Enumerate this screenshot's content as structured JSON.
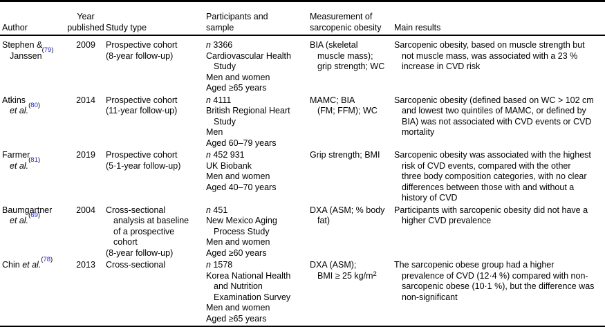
{
  "colors": {
    "ref_blue": "#2424cf",
    "rule_black": "#000000"
  },
  "table": {
    "header": {
      "author": [
        "Author"
      ],
      "year": [
        "Year",
        "published"
      ],
      "study": [
        "Study type"
      ],
      "participants": [
        "Participants and",
        "sample"
      ],
      "measurement": [
        "Measurement of",
        "sarcopenic obesity"
      ],
      "results": [
        "Main results"
      ]
    },
    "rows": [
      {
        "author": [
          "Stephen &",
          "»Janssen{ref}79{/ref}"
        ],
        "year": [
          "2009"
        ],
        "study": [
          "Prospective cohort",
          "(8-year follow-up)"
        ],
        "participants": [
          "{i}n{/i} 3366",
          "Cardiovascular Health",
          "»Study",
          "Men and women",
          "Aged ≥65 years"
        ],
        "measurement": [
          "BIA (skeletal",
          "»muscle mass);",
          "»grip strength; WC"
        ],
        "results": [
          "Sarcopenic obesity, based on muscle strength but",
          "»not muscle mass, was associated with a 23 %",
          "»increase in CVD risk"
        ]
      },
      {
        "author": [
          "Atkins",
          "»{i}et al.{/i}{ref}80{/ref}"
        ],
        "year": [
          "2014"
        ],
        "study": [
          "Prospective cohort",
          "(11-year follow-up)"
        ],
        "participants": [
          "{i}n{/i} 4111",
          "British Regional Heart",
          "»Study",
          "Men",
          "Aged 60–79 years"
        ],
        "measurement": [
          "MAMC; BIA",
          "»(FM; FFM); WC"
        ],
        "results": [
          "Sarcopenic obesity (defined based on WC > 102 cm",
          "»and lowest two quintiles of MAMC, or defined by",
          "»BIA) was not associated with CVD events or CVD",
          "»mortality"
        ]
      },
      {
        "author": [
          "Farmer",
          "»{i}et al.{/i}{ref}81{/ref}"
        ],
        "year": [
          "2019"
        ],
        "study": [
          "Prospective cohort",
          "(5·1-year follow-up)"
        ],
        "participants": [
          "{i}n{/i} 452 931",
          "UK Biobank",
          "Men and women",
          "Aged 40–70 years"
        ],
        "measurement": [
          "Grip strength; BMI"
        ],
        "results": [
          "Sarcopenic obesity was associated with the highest",
          "»risk of CVD events, compared with the other",
          "»three body composition categories, with no clear",
          "»differences between those with and without a",
          "»history of CVD"
        ]
      },
      {
        "author": [
          "Baumgartner",
          "»{i}et al.{/i}{ref}69{/ref}"
        ],
        "year": [
          "2004"
        ],
        "study": [
          "Cross-sectional",
          "»analysis at baseline",
          "»of a prospective",
          "»cohort",
          "(8-year follow-up)"
        ],
        "participants": [
          "{i}n{/i} 451",
          "New Mexico Aging",
          "»Process Study",
          "Men and women",
          "Aged ≥60 years"
        ],
        "measurement": [
          "DXA (ASM; % body",
          "»fat)"
        ],
        "results": [
          "Participants with sarcopenic obesity did not have a",
          "»higher CVD prevalence"
        ]
      },
      {
        "author": [
          "Chin {i}et al.{/i}{ref}78{/ref}"
        ],
        "year": [
          "2013"
        ],
        "study": [
          "Cross-sectional"
        ],
        "participants": [
          "{i}n{/i} 1578",
          "Korea National Health",
          "»and Nutrition",
          "»Examination Survey",
          "Men and women",
          "Aged ≥65 years"
        ],
        "measurement": [
          "DXA (ASM);",
          "»BMI ≥ 25 kg/m{s2}"
        ],
        "results": [
          "The sarcopenic obese group had a higher",
          "»prevalence of CVD (12·4 %) compared with non-",
          "»sarcopenic obese (10·1 %), but the difference was",
          "»non-significant"
        ]
      }
    ]
  }
}
